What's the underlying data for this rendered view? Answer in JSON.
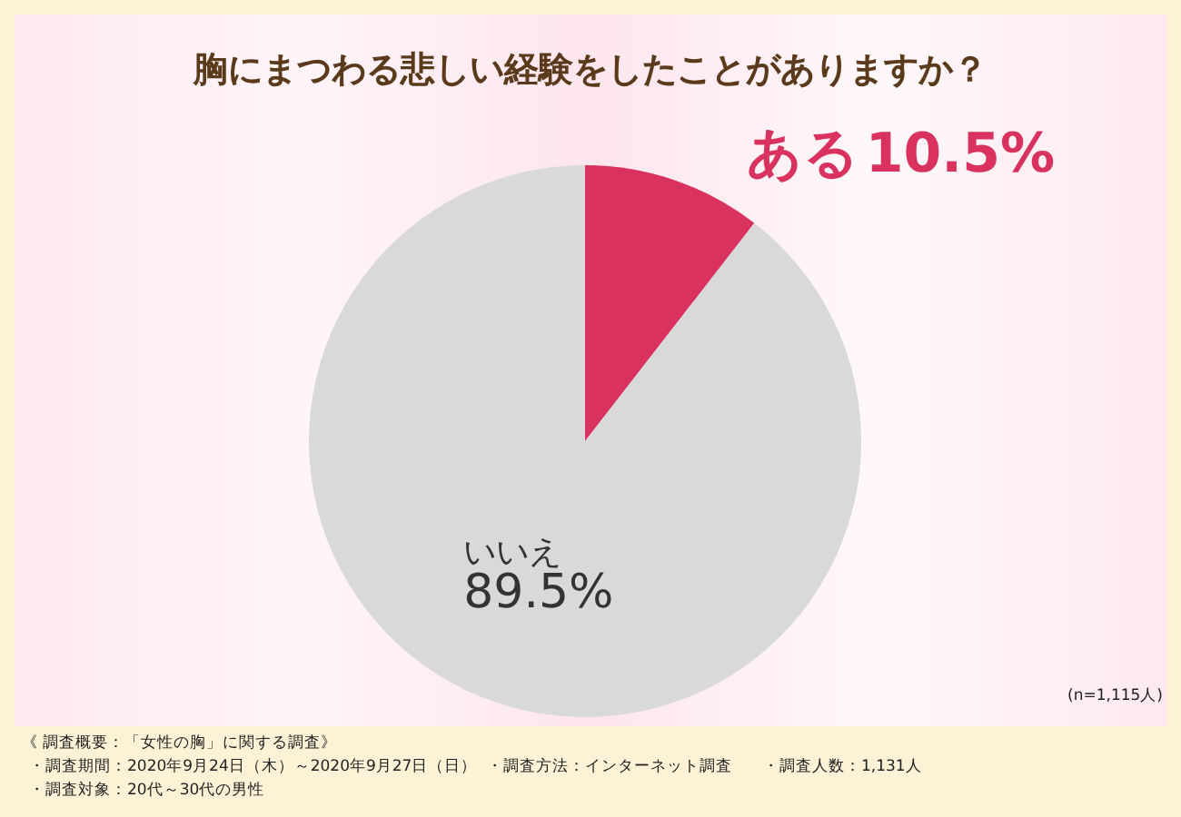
{
  "chart_data": {
    "type": "pie",
    "title": "胸にまつわる悲しい経験をしたことがありますか？",
    "categories": [
      "ある",
      "いいえ"
    ],
    "values": [
      10.5,
      89.5
    ],
    "colors": [
      "#d9325e",
      "#d9d9d9"
    ],
    "value_labels": [
      "10.5%",
      "89.5%"
    ],
    "legend": false,
    "annotations": [
      "(n=1,115人)",
      "《 調査概要：「女性の胸」に関する調査》",
      "・調査期間：2020年9月24日（木）～2020年9月27日（日）",
      "・調査方法：インターネット調査",
      "・調査人数：1,131人",
      "・調査対象：20代～30代の男性"
    ]
  }
}
